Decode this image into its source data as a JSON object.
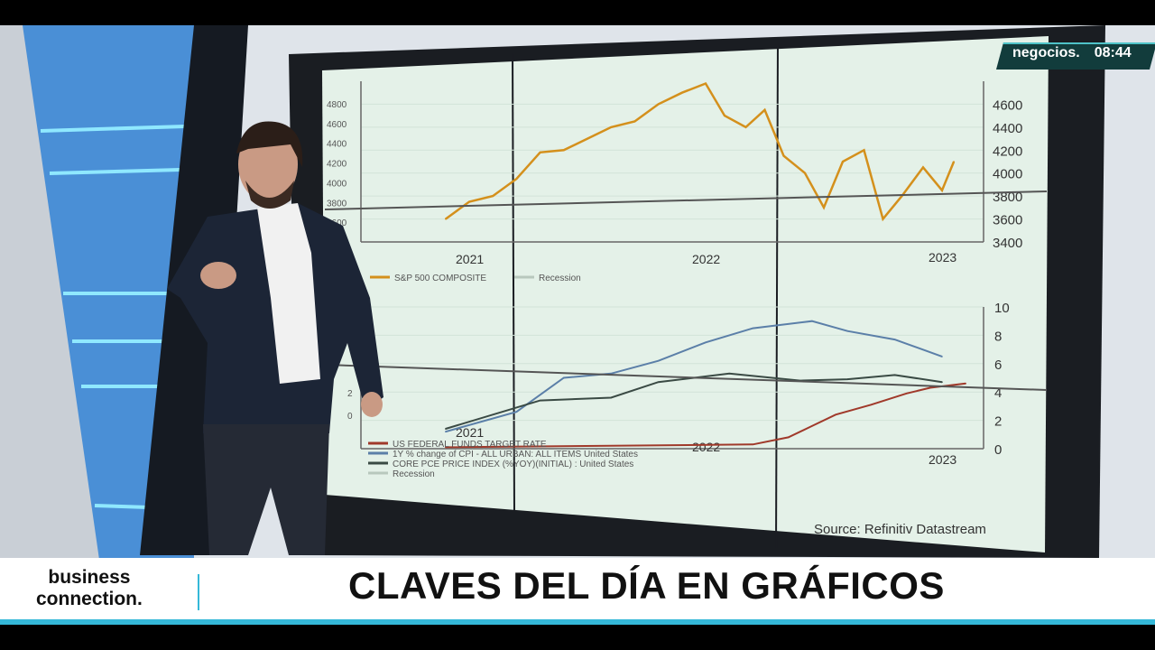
{
  "broadcast": {
    "channel_bug": "negocios.",
    "clock": "08:44",
    "show_name_line1": "business",
    "show_name_line2": "connection.",
    "headline": "CLAVES DEL DÍA EN GRÁFICOS",
    "accent_color": "#35b8d8"
  },
  "screen": {
    "source": "Source: Refinitiv Datastream"
  },
  "chart_data": [
    {
      "type": "line",
      "xticks": [
        "2021",
        "2022",
        "2023"
      ],
      "y_left_ticks": [
        "3400",
        "3600",
        "3800",
        "4000",
        "4200",
        "4400",
        "4600",
        "4800"
      ],
      "y_right_ticks": [
        "3400",
        "3600",
        "3800",
        "4000",
        "4200",
        "4400",
        "4600"
      ],
      "ylim": [
        3400,
        4800
      ],
      "legend": [
        "S&P 500 COMPOSITE",
        "Recession"
      ],
      "series": [
        {
          "name": "S&P 500 COMPOSITE",
          "color": "#d4901c",
          "x": [
            2020.9,
            2021.0,
            2021.1,
            2021.2,
            2021.3,
            2021.4,
            2021.5,
            2021.6,
            2021.7,
            2021.8,
            2021.9,
            2022.0,
            2022.08,
            2022.17,
            2022.25,
            2022.33,
            2022.42,
            2022.5,
            2022.58,
            2022.67,
            2022.75,
            2022.83,
            2022.92,
            2023.0,
            2023.05
          ],
          "values": [
            3600,
            3750,
            3800,
            3950,
            4180,
            4200,
            4300,
            4400,
            4450,
            4600,
            4700,
            4780,
            4500,
            4400,
            4550,
            4150,
            4000,
            3700,
            4100,
            4200,
            3600,
            3800,
            4050,
            3850,
            4100
          ]
        }
      ]
    },
    {
      "type": "line",
      "xticks": [
        "2021",
        "2022",
        "2023"
      ],
      "y_left_ticks": [
        "0",
        "2"
      ],
      "y_right_ticks": [
        "0",
        "2",
        "4",
        "6",
        "8",
        "10"
      ],
      "ylim": [
        0,
        10
      ],
      "legend": [
        "US FEDERAL FUNDS TARGET RATE",
        "1Y % change of CPI - ALL URBAN: ALL ITEMS  United States",
        "CORE PCE PRICE INDEX (%YOY)(INITIAL) : United States",
        "Recession"
      ],
      "series": [
        {
          "name": "US FEDERAL FUNDS TARGET RATE",
          "color": "#a0392a",
          "x": [
            2020.9,
            2022.2,
            2022.35,
            2022.45,
            2022.55,
            2022.7,
            2022.85,
            2022.95,
            2023.1
          ],
          "values": [
            0.1,
            0.3,
            0.8,
            1.6,
            2.4,
            3.1,
            3.9,
            4.3,
            4.6
          ]
        },
        {
          "name": "1Y % change of CPI - ALL URBAN: ALL ITEMS  United States",
          "color": "#5b7fa8",
          "x": [
            2020.9,
            2021.2,
            2021.4,
            2021.6,
            2021.8,
            2022.0,
            2022.2,
            2022.45,
            2022.6,
            2022.8,
            2023.0
          ],
          "values": [
            1.2,
            2.6,
            5.0,
            5.3,
            6.2,
            7.5,
            8.5,
            9.0,
            8.3,
            7.7,
            6.5
          ]
        },
        {
          "name": "CORE PCE PRICE INDEX (%YOY)(INITIAL) : United States",
          "color": "#3a4a44",
          "x": [
            2020.9,
            2021.3,
            2021.6,
            2021.8,
            2022.1,
            2022.4,
            2022.6,
            2022.8,
            2023.0
          ],
          "values": [
            1.4,
            3.4,
            3.6,
            4.7,
            5.3,
            4.8,
            4.9,
            5.2,
            4.7
          ]
        }
      ]
    }
  ]
}
